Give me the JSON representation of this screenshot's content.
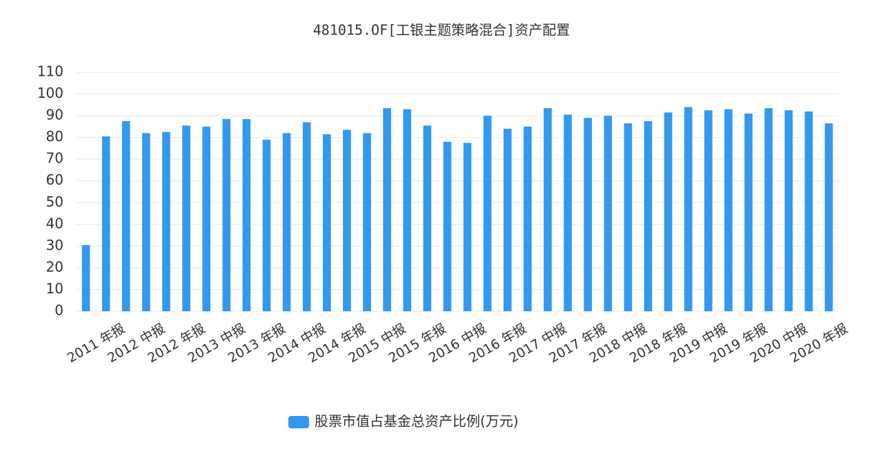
{
  "chart_data": {
    "type": "bar",
    "title": "481015.OF[工银主题策略混合]资产配置",
    "categories": [
      null,
      "2011 年报",
      null,
      "2012 中报",
      null,
      "2012 年报",
      null,
      "2013 中报",
      null,
      "2013 年报",
      null,
      "2014 中报",
      null,
      "2014 年报",
      null,
      "2015 中报",
      null,
      "2015 年报",
      null,
      "2016 中报",
      null,
      "2016 年报",
      null,
      "2017 中报",
      null,
      "2017 年报",
      null,
      "2018 中报",
      null,
      "2018 年报",
      null,
      "2019 中报",
      null,
      "2019 年报",
      null,
      "2020 中报",
      null,
      "2020 年报"
    ],
    "series": [
      {
        "name": "股票市值占基金总资产比例(万元)",
        "color": "#3399ee",
        "values": [
          30.5,
          80.5,
          87.5,
          82,
          82.5,
          85.5,
          85,
          88.5,
          88.5,
          79,
          82,
          87,
          81.5,
          83.5,
          82,
          93.5,
          93,
          85.5,
          78,
          77.5,
          90,
          84,
          85,
          93.5,
          90.5,
          89,
          90,
          86.5,
          87.5,
          91.5,
          94,
          92.5,
          93,
          91,
          93.5,
          92.5,
          92,
          86.5
        ]
      }
    ],
    "ylim": [
      0,
      110
    ],
    "yticks": [
      0,
      10,
      20,
      30,
      40,
      50,
      60,
      70,
      80,
      90,
      100,
      110
    ],
    "grid": true,
    "legend": "bottom"
  }
}
